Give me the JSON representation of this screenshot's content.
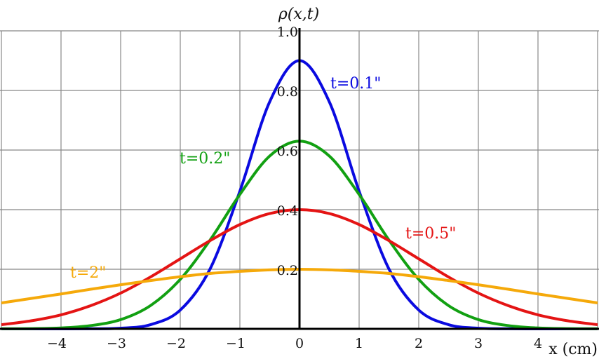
{
  "chart_data": {
    "type": "line",
    "title": "",
    "xlabel": "x (cm)",
    "ylabel": "ρ(x,t)",
    "xlim": [
      -5,
      5
    ],
    "ylim": [
      0,
      1.1
    ],
    "grid": true,
    "xticks": [
      "−4",
      "−3",
      "−2",
      "−1",
      "0",
      "1",
      "2",
      "3",
      "4"
    ],
    "xtick_values": [
      -4,
      -3,
      -2,
      -1,
      0,
      1,
      2,
      3,
      4
    ],
    "yticks": [
      "0.2",
      "0.4",
      "0.6",
      "0.8",
      "1.0"
    ],
    "ytick_values": [
      0.2,
      0.4,
      0.6,
      0.8,
      1.0
    ],
    "x": [
      -5,
      -4.5,
      -4,
      -3.5,
      -3,
      -2.5,
      -2,
      -1.5,
      -1,
      -0.5,
      0,
      0.5,
      1,
      1.5,
      2,
      2.5,
      3,
      3.5,
      4,
      4.5,
      5
    ],
    "series": [
      {
        "name": "t=0.1\"",
        "color": "#0a0ae0",
        "values": [
          0,
          0,
          0,
          0.0003,
          0.002,
          0.014,
          0.063,
          0.201,
          0.462,
          0.762,
          0.9,
          0.762,
          0.462,
          0.201,
          0.063,
          0.014,
          0.002,
          0.0003,
          0,
          0,
          0
        ]
      },
      {
        "name": "t=0.2\"",
        "color": "#12a012",
        "values": [
          0.0002,
          0.0007,
          0.003,
          0.011,
          0.031,
          0.078,
          0.166,
          0.298,
          0.451,
          0.58,
          0.63,
          0.58,
          0.451,
          0.298,
          0.166,
          0.078,
          0.031,
          0.011,
          0.003,
          0.0007,
          0.0002
        ]
      },
      {
        "name": "t=0.5\"",
        "color": "#e41414",
        "values": [
          0.014,
          0.027,
          0.047,
          0.078,
          0.12,
          0.174,
          0.235,
          0.296,
          0.35,
          0.387,
          0.4,
          0.387,
          0.35,
          0.296,
          0.235,
          0.174,
          0.12,
          0.078,
          0.047,
          0.027,
          0.014
        ]
      },
      {
        "name": "t=2\"",
        "color": "#f5a90a",
        "values": [
          0.087,
          0.102,
          0.117,
          0.133,
          0.148,
          0.162,
          0.175,
          0.186,
          0.193,
          0.198,
          0.2,
          0.198,
          0.193,
          0.186,
          0.175,
          0.162,
          0.148,
          0.133,
          0.117,
          0.102,
          0.087
        ]
      }
    ]
  }
}
